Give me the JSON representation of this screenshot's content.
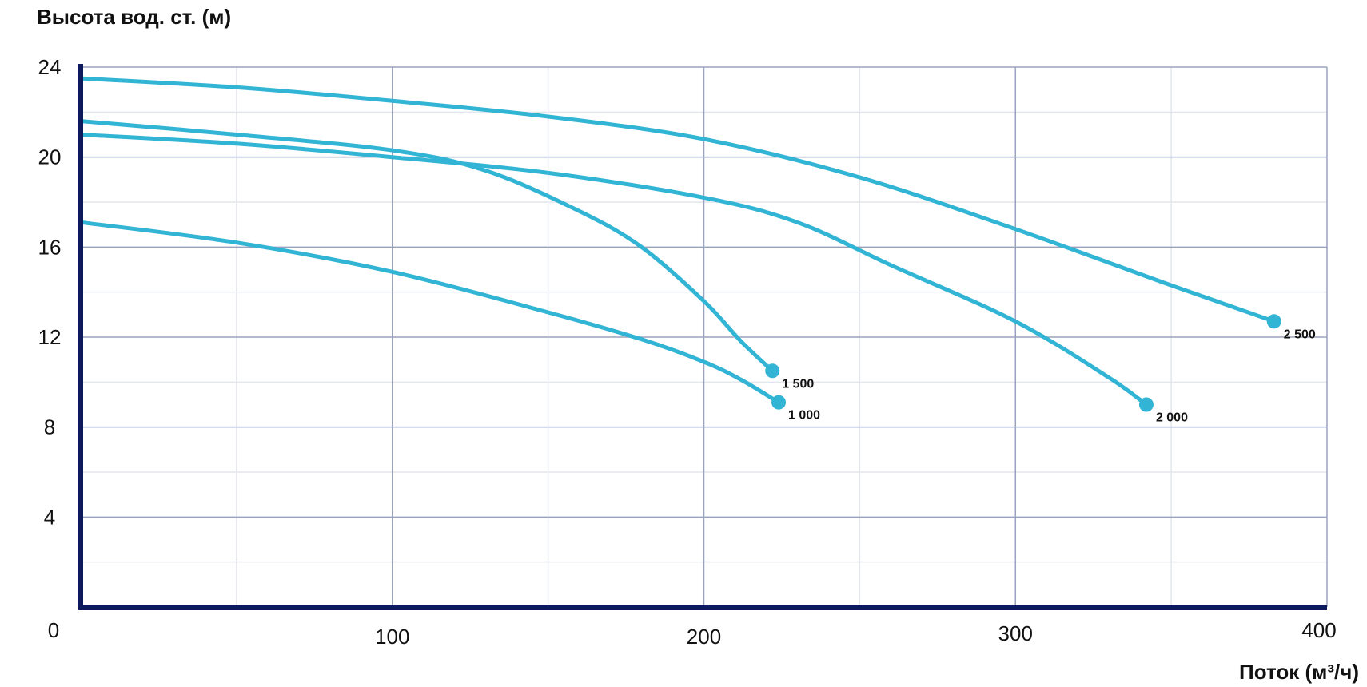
{
  "chart_data": {
    "type": "line",
    "title": "",
    "xlabel": "Поток (м³/ч)",
    "ylabel": "Высота вод. ст. (м)",
    "xlim": [
      0,
      400
    ],
    "ylim": [
      0,
      24
    ],
    "x_ticks": [
      0,
      100,
      200,
      300,
      400
    ],
    "x_tick_labels": [
      "0",
      "100",
      "200",
      "300",
      "400"
    ],
    "y_ticks": [
      4,
      8,
      12,
      16,
      20,
      24
    ],
    "y_tick_labels": [
      "4",
      "8",
      "12",
      "16",
      "20",
      "24"
    ],
    "grid": true,
    "legend": "none",
    "colors": {
      "curve": "#32b4d4",
      "axis": "#0d1b5e",
      "grid": "#9aa3bd",
      "grid_minor": "#e3e6ec"
    },
    "series": [
      {
        "name": "1 000",
        "points": [
          [
            0,
            17.1
          ],
          [
            50,
            16.2
          ],
          [
            100,
            14.9
          ],
          [
            150,
            13.1
          ],
          [
            180,
            11.9
          ],
          [
            200,
            10.9
          ],
          [
            212,
            10.1
          ],
          [
            224,
            9.1
          ]
        ]
      },
      {
        "name": "1 500",
        "points": [
          [
            0,
            21.6
          ],
          [
            50,
            21.0
          ],
          [
            100,
            20.3
          ],
          [
            130,
            19.4
          ],
          [
            160,
            17.6
          ],
          [
            180,
            16.0
          ],
          [
            200,
            13.6
          ],
          [
            212,
            11.8
          ],
          [
            222,
            10.5
          ]
        ]
      },
      {
        "name": "2 000",
        "points": [
          [
            0,
            21.0
          ],
          [
            50,
            20.6
          ],
          [
            100,
            20.0
          ],
          [
            150,
            19.3
          ],
          [
            200,
            18.2
          ],
          [
            230,
            17.1
          ],
          [
            260,
            15.2
          ],
          [
            300,
            12.7
          ],
          [
            330,
            10.2
          ],
          [
            342,
            9.0
          ]
        ]
      },
      {
        "name": "2 500",
        "points": [
          [
            0,
            23.5
          ],
          [
            50,
            23.1
          ],
          [
            100,
            22.5
          ],
          [
            150,
            21.8
          ],
          [
            200,
            20.8
          ],
          [
            250,
            19.1
          ],
          [
            300,
            16.8
          ],
          [
            350,
            14.3
          ],
          [
            383,
            12.7
          ]
        ]
      }
    ]
  }
}
